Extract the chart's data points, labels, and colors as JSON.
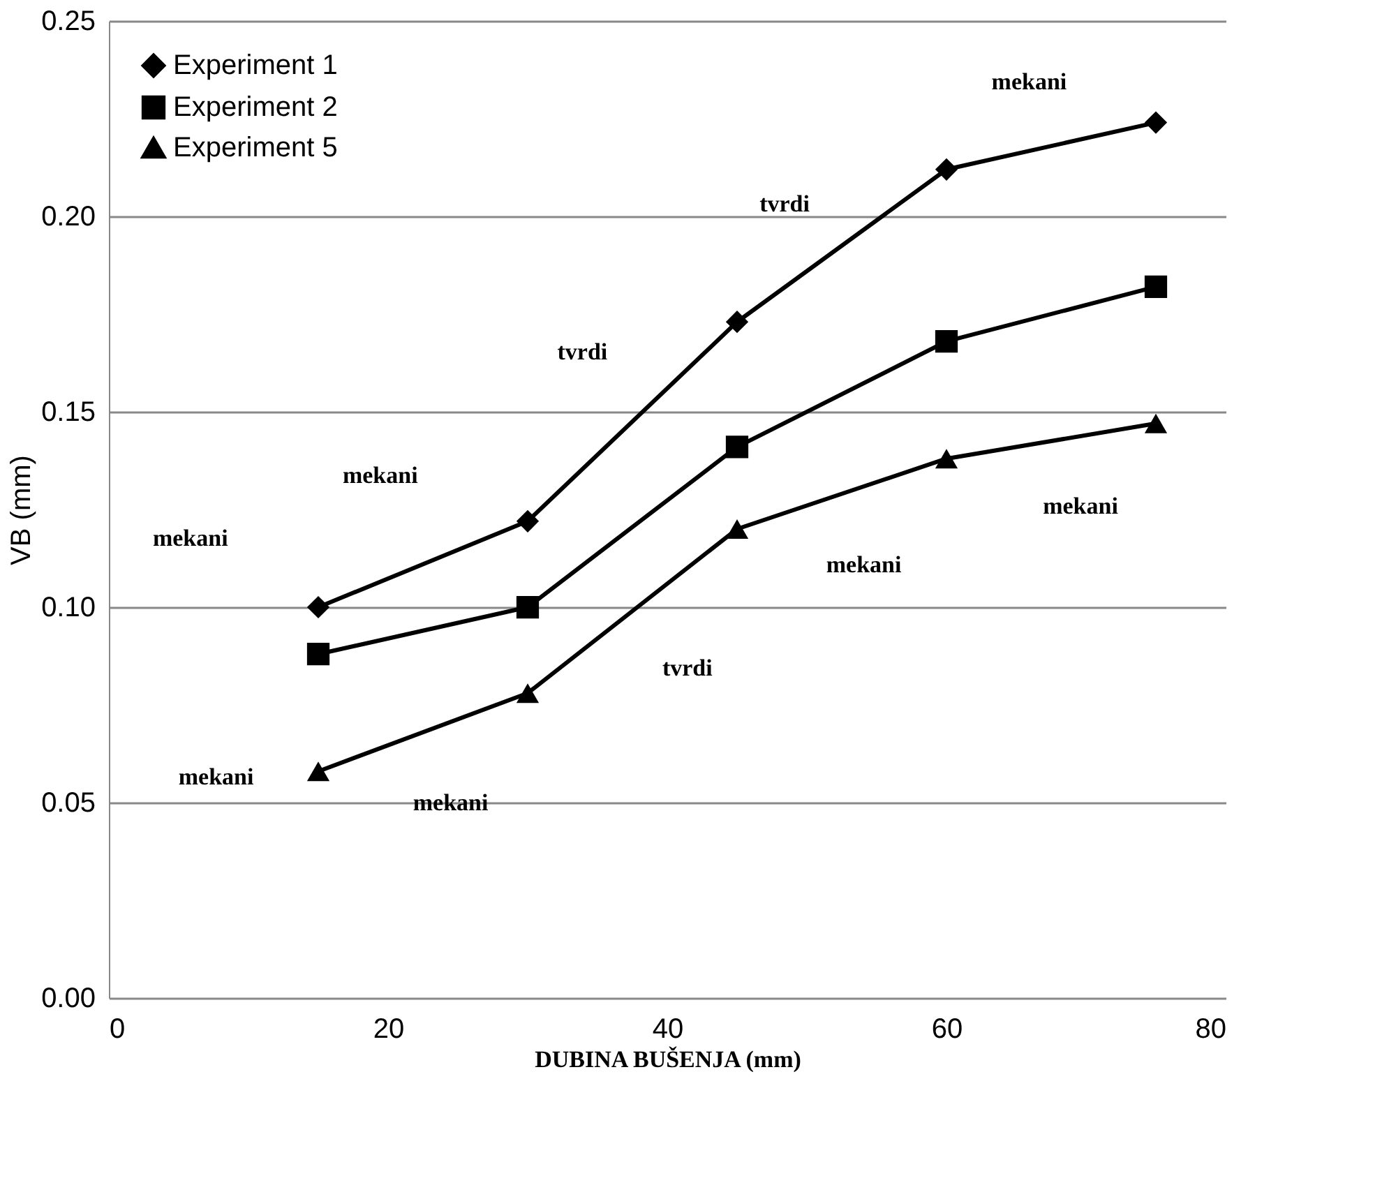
{
  "chart_data": {
    "type": "line",
    "xlabel": "DUBINA BUŠENJA (mm)",
    "ylabel": "VB (mm)",
    "x": [
      15,
      30,
      45,
      60,
      75
    ],
    "series": [
      {
        "name": "Experiment 1",
        "color": "#000000",
        "marker": "diamond",
        "values": [
          0.1,
          0.122,
          0.173,
          0.212,
          0.224
        ]
      },
      {
        "name": "Experiment 2",
        "color": "#000000",
        "marker": "square",
        "values": [
          0.088,
          0.1,
          0.141,
          0.168,
          0.182
        ]
      },
      {
        "name": "Experiment 5",
        "color": "#000000",
        "marker": "triangle",
        "values": [
          0.058,
          0.078,
          0.12,
          0.138,
          0.147
        ]
      }
    ],
    "xlim": [
      0,
      80
    ],
    "xticks": [
      0,
      20,
      40,
      60,
      80
    ],
    "ylim": [
      0,
      0.25
    ],
    "yticks": [
      {
        "value": 0,
        "label": "0.00"
      },
      {
        "value": 0.05,
        "label": "0.05"
      },
      {
        "value": 0.1,
        "label": "0.10"
      },
      {
        "value": 0.15,
        "label": "0.15"
      },
      {
        "value": 0.2,
        "label": "0.20"
      },
      {
        "value": 0.25,
        "label": "0.25"
      }
    ],
    "grid": "y",
    "legend": "top left",
    "line_style": "solid",
    "annotations": [
      "mekani",
      "mekani",
      "tvrdi",
      "tvrdi",
      "mekani",
      "mekani",
      "mekani",
      "tvrdi",
      "mekani",
      "mekani"
    ]
  }
}
